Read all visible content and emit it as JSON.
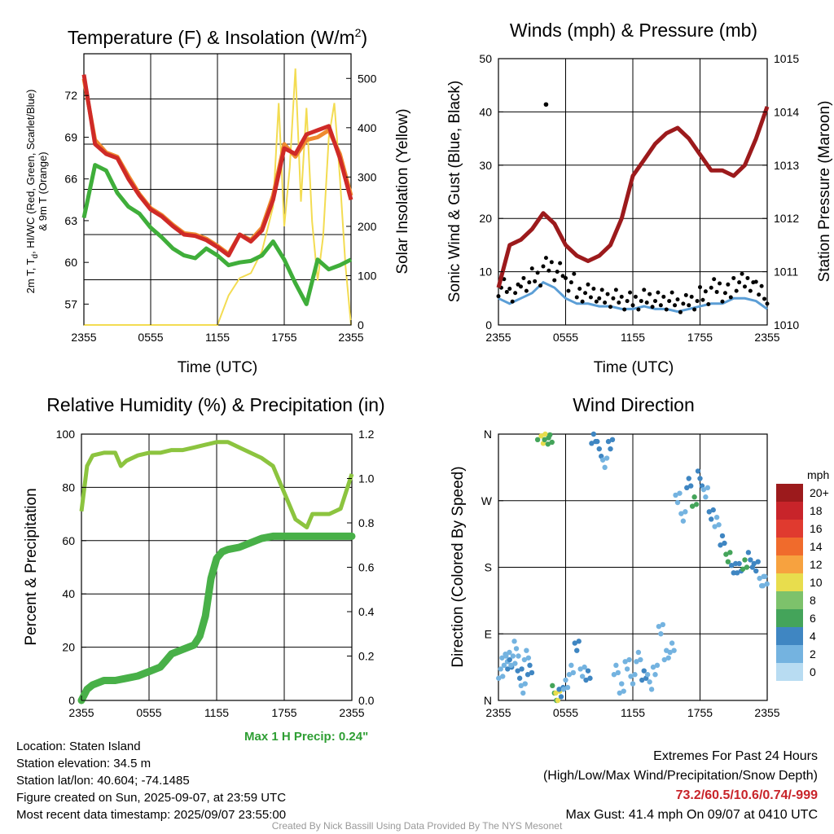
{
  "time_ticks": [
    "2355",
    "0555",
    "1155",
    "1755",
    "2355"
  ],
  "temp_chart": {
    "title": "Temperature (F) & Insolation (W/m",
    "title_sup": "2",
    "title_end": ")",
    "ylabel_line1": "2m T, T",
    "ylabel_sub": "d",
    "ylabel_line1_end": ", HI/WC (Red, Green, Scarlet/Blue)",
    "ylabel_line2": "& 9m T (Orange)",
    "y2label": "Solar Insolation (Yellow)",
    "xlabel": "Time (UTC)",
    "y_ticks": [
      "57",
      "60",
      "63",
      "66",
      "69",
      "72"
    ],
    "y2_ticks": [
      "0",
      "100",
      "200",
      "300",
      "400",
      "500"
    ]
  },
  "wind_chart": {
    "title": "Winds (mph) & Pressure (mb)",
    "ylabel": "Sonic Wind & Gust (Blue, Black)",
    "y2label": "Station Pressure (Maroon)",
    "xlabel": "Time (UTC)",
    "y_ticks": [
      "0",
      "10",
      "20",
      "30",
      "40",
      "50"
    ],
    "y2_ticks": [
      "1010",
      "1011",
      "1012",
      "1013",
      "1014",
      "1015"
    ]
  },
  "rh_chart": {
    "title": "Relative Humidity (%) & Precipitation (in)",
    "ylabel": "Percent & Precipitation",
    "y_ticks": [
      "0",
      "20",
      "40",
      "60",
      "80",
      "100"
    ],
    "y2_ticks": [
      "0.0",
      "0.2",
      "0.4",
      "0.6",
      "0.8",
      "1.0",
      "1.2"
    ],
    "max_precip": "Max 1 H Precip: 0.24\""
  },
  "dir_chart": {
    "title": "Wind Direction",
    "ylabel": "Direction (Colored By Speed)",
    "y_ticks": [
      "N",
      "E",
      "S",
      "W",
      "N"
    ],
    "legend_title": "mph",
    "legend_labels": [
      "20+",
      "18",
      "16",
      "14",
      "12",
      "10",
      "8",
      "6",
      "4",
      "2",
      "0"
    ],
    "legend_colors": [
      "#9c1a1c",
      "#c8242a",
      "#e03a2f",
      "#f06b2c",
      "#f7a23f",
      "#e8dd4d",
      "#7dc26b",
      "#44a45a",
      "#3f86c2",
      "#74b3e0",
      "#b8dcf2"
    ]
  },
  "info": {
    "location": "Location: Staten Island",
    "elevation": "Station elevation: 34.5 m",
    "latlon": "Station lat/lon: 40.604; -74.1485",
    "created": "Figure created on Sun, 2025-09-07, at 23:59 UTC",
    "recent": "Most recent data timestamp: 2025/09/07 23:55:00"
  },
  "extremes": {
    "line1": "Extremes For Past 24 Hours",
    "line2": "(High/Low/Max Wind/Precipitation/Snow Depth)",
    "values": "73.2/60.5/10.6/0.74/-999",
    "gust": "Max Gust: 41.4 mph On 09/07 at 0410 UTC"
  },
  "footer": "Created By Nick Bassill Using Data Provided By The NYS Mesonet",
  "chart_data": [
    {
      "type": "line",
      "title": "Temperature (F) & Insolation (W/m2)",
      "xlabel": "Time (UTC)",
      "ylabel": "2m T, Td, HI/WC (Red, Green, Scarlet/Blue) & 9m T (Orange)",
      "y2label": "Solar Insolation (Yellow)",
      "x_range_hours": [
        0,
        24
      ],
      "ylim": [
        55.5,
        75
      ],
      "y2lim": [
        0,
        550
      ],
      "series": [
        {
          "name": "2m T",
          "color": "#cf2a27",
          "axis": "left",
          "x": [
            0,
            1,
            2,
            3,
            4,
            5,
            6,
            7,
            8,
            9,
            10,
            11,
            12,
            13,
            14,
            15,
            16,
            17,
            18,
            19,
            20,
            21,
            22,
            23,
            24
          ],
          "y": [
            73.5,
            68.5,
            67.8,
            67.5,
            66.0,
            64.8,
            63.8,
            63.3,
            62.6,
            62.0,
            61.9,
            61.6,
            61.1,
            60.5,
            62.0,
            61.5,
            62.3,
            64.5,
            68.2,
            67.8,
            69.2,
            69.5,
            69.8,
            67.5,
            64.5
          ]
        },
        {
          "name": "9m T",
          "color": "#ef8a2e",
          "axis": "left",
          "x": [
            0,
            1,
            2,
            3,
            4,
            5,
            6,
            7,
            8,
            9,
            10,
            11,
            12,
            13,
            14,
            15,
            16,
            17,
            18,
            19,
            20,
            21,
            22,
            23,
            24
          ],
          "y": [
            73.2,
            68.8,
            67.9,
            67.6,
            66.2,
            64.9,
            63.9,
            63.4,
            62.7,
            62.1,
            62.0,
            61.7,
            61.2,
            60.6,
            62.0,
            61.6,
            62.5,
            64.8,
            68.5,
            67.6,
            68.8,
            69.0,
            69.5,
            67.8,
            64.8
          ]
        },
        {
          "name": "Td",
          "color": "#3fae3a",
          "axis": "left",
          "x": [
            0,
            1,
            2,
            3,
            4,
            5,
            6,
            7,
            8,
            9,
            10,
            11,
            12,
            13,
            14,
            15,
            16,
            17,
            18,
            19,
            20,
            21,
            22,
            23,
            24
          ],
          "y": [
            63.2,
            67.0,
            66.6,
            65.0,
            64.0,
            63.5,
            62.5,
            61.8,
            61.0,
            60.5,
            60.3,
            61.0,
            60.5,
            59.8,
            60.0,
            60.1,
            60.5,
            61.5,
            60.2,
            58.5,
            57.0,
            60.2,
            59.5,
            59.8,
            60.2
          ]
        },
        {
          "name": "Solar Insolation",
          "color": "#f3dc52",
          "axis": "right",
          "x": [
            0,
            10,
            11,
            12,
            13,
            14,
            15,
            16,
            17,
            17.5,
            18,
            18.5,
            19,
            19.5,
            20,
            20.5,
            21,
            21.5,
            22,
            22.5,
            23,
            23.5,
            24
          ],
          "y": [
            0,
            0,
            0,
            0,
            60,
            95,
            105,
            150,
            240,
            450,
            200,
            320,
            520,
            250,
            440,
            210,
            90,
            180,
            380,
            450,
            300,
            120,
            0
          ]
        }
      ]
    },
    {
      "type": "line",
      "title": "Winds (mph) & Pressure (mb)",
      "xlabel": "Time (UTC)",
      "ylabel": "Sonic Wind & Gust (Blue, Black)",
      "y2label": "Station Pressure (Maroon)",
      "x_range_hours": [
        0,
        24
      ],
      "ylim": [
        0,
        50
      ],
      "y2lim": [
        1010,
        1015
      ],
      "series": [
        {
          "name": "Sonic Wind",
          "color": "#5b9ed6",
          "axis": "left",
          "x": [
            0,
            1,
            2,
            3,
            4,
            5,
            6,
            7,
            8,
            9,
            10,
            11,
            12,
            13,
            14,
            15,
            16,
            17,
            18,
            19,
            20,
            21,
            22,
            23,
            24
          ],
          "y": [
            5,
            4,
            5,
            6,
            8,
            7,
            5,
            4,
            4,
            3.5,
            3.5,
            3,
            3,
            3.5,
            3,
            3,
            2.5,
            3,
            3.5,
            4,
            4,
            5,
            5,
            4.5,
            3
          ]
        },
        {
          "name": "Gust",
          "color": "#000000",
          "axis": "left",
          "x": [
            0,
            1,
            2,
            3,
            4,
            5,
            6,
            7,
            8,
            9,
            10,
            11,
            12,
            13,
            14,
            15,
            16,
            17,
            18,
            19,
            20,
            21,
            22,
            23,
            24
          ],
          "y": [
            7,
            6,
            8,
            9,
            11,
            10,
            8,
            6,
            6,
            5,
            5,
            4.5,
            4.5,
            5,
            4.5,
            4.5,
            4,
            4.5,
            5.5,
            7,
            6,
            8,
            8,
            6.5,
            4
          ]
        },
        {
          "name": "Station Pressure",
          "color": "#9c1a1c",
          "axis": "right",
          "x": [
            0,
            1,
            2,
            3,
            4,
            5,
            6,
            7,
            8,
            9,
            10,
            11,
            12,
            13,
            14,
            15,
            16,
            17,
            18,
            19,
            20,
            21,
            22,
            23,
            24
          ],
          "y": [
            1010.7,
            1011.5,
            1011.6,
            1011.8,
            1012.1,
            1011.9,
            1011.5,
            1011.3,
            1011.2,
            1011.3,
            1011.5,
            1012.0,
            1012.8,
            1013.1,
            1013.4,
            1013.6,
            1013.7,
            1013.5,
            1013.2,
            1012.9,
            1012.9,
            1012.8,
            1013.0,
            1013.5,
            1014.1
          ]
        }
      ],
      "max_gust_point": {
        "x": 4.25,
        "y": 41.4
      }
    },
    {
      "type": "line",
      "title": "Relative Humidity (%) & Precipitation (in)",
      "ylabel": "Percent & Precipitation",
      "x_range_hours": [
        0,
        24
      ],
      "ylim": [
        0,
        100
      ],
      "y2lim": [
        0,
        1.2
      ],
      "series": [
        {
          "name": "Relative Humidity",
          "color": "#8cc43f",
          "axis": "left",
          "x": [
            0,
            0.5,
            1,
            2,
            3,
            3.5,
            4,
            5,
            6,
            7,
            8,
            9,
            10,
            11,
            12,
            13,
            14,
            15,
            16,
            17,
            18,
            19,
            20,
            20.5,
            21,
            22,
            23,
            24
          ],
          "y": [
            71,
            88,
            92,
            93,
            93,
            88,
            90,
            92,
            93,
            93,
            94,
            94,
            95,
            96,
            97,
            97,
            95,
            93,
            91,
            88,
            78,
            68,
            65,
            70,
            70,
            70,
            72,
            85
          ]
        },
        {
          "name": "Precipitation",
          "color": "#48b048",
          "axis": "right",
          "x": [
            0,
            0.5,
            1,
            1.5,
            2,
            3,
            4,
            5,
            6,
            7,
            7.5,
            8,
            9,
            10,
            10.5,
            11,
            11.5,
            12,
            12.5,
            13,
            14,
            15,
            16,
            17,
            18,
            19,
            20,
            24
          ],
          "y": [
            0,
            0.05,
            0.07,
            0.08,
            0.09,
            0.09,
            0.1,
            0.11,
            0.13,
            0.15,
            0.18,
            0.21,
            0.23,
            0.25,
            0.29,
            0.38,
            0.55,
            0.64,
            0.67,
            0.68,
            0.69,
            0.71,
            0.73,
            0.74,
            0.74,
            0.74,
            0.74,
            0.74
          ]
        }
      ]
    },
    {
      "type": "scatter",
      "title": "Wind Direction",
      "ylabel": "Direction (Colored By Speed)",
      "x_range_hours": [
        0,
        24
      ],
      "ylim_degrees": [
        0,
        360
      ],
      "points": [
        {
          "x": 0.2,
          "y": 40,
          "s": 2
        },
        {
          "x": 0.5,
          "y": 50,
          "s": 2
        },
        {
          "x": 0.8,
          "y": 60,
          "s": 3
        },
        {
          "x": 1.0,
          "y": 45,
          "s": 4
        },
        {
          "x": 1.3,
          "y": 55,
          "s": 2
        },
        {
          "x": 1.6,
          "y": 70,
          "s": 3
        },
        {
          "x": 1.9,
          "y": 35,
          "s": 4
        },
        {
          "x": 2.2,
          "y": 20,
          "s": 2
        },
        {
          "x": 2.5,
          "y": 60,
          "s": 3
        },
        {
          "x": 2.8,
          "y": 45,
          "s": 4
        },
        {
          "x": 3.5,
          "y": 355,
          "s": 7
        },
        {
          "x": 4.0,
          "y": 355,
          "s": 10
        },
        {
          "x": 4.3,
          "y": 355,
          "s": 6
        },
        {
          "x": 4.6,
          "y": 354,
          "s": 7
        },
        {
          "x": 5.0,
          "y": 10,
          "s": 7
        },
        {
          "x": 5.3,
          "y": 5,
          "s": 10
        },
        {
          "x": 5.6,
          "y": 15,
          "s": 4
        },
        {
          "x": 6.0,
          "y": 20,
          "s": 3
        },
        {
          "x": 6.5,
          "y": 45,
          "s": 3
        },
        {
          "x": 7.0,
          "y": 70,
          "s": 4
        },
        {
          "x": 7.5,
          "y": 40,
          "s": 2
        },
        {
          "x": 8.0,
          "y": 30,
          "s": 4
        },
        {
          "x": 8.5,
          "y": 355,
          "s": 4
        },
        {
          "x": 9.0,
          "y": 340,
          "s": 4
        },
        {
          "x": 9.5,
          "y": 320,
          "s": 3
        },
        {
          "x": 10.0,
          "y": 350,
          "s": 4
        },
        {
          "x": 10.5,
          "y": 40,
          "s": 3
        },
        {
          "x": 11.0,
          "y": 20,
          "s": 2
        },
        {
          "x": 11.5,
          "y": 45,
          "s": 3
        },
        {
          "x": 12.0,
          "y": 30,
          "s": 2
        },
        {
          "x": 12.5,
          "y": 55,
          "s": 3
        },
        {
          "x": 13.0,
          "y": 35,
          "s": 4
        },
        {
          "x": 13.5,
          "y": 25,
          "s": 2
        },
        {
          "x": 14.0,
          "y": 40,
          "s": 3
        },
        {
          "x": 14.5,
          "y": 100,
          "s": 2
        },
        {
          "x": 15.0,
          "y": 60,
          "s": 3
        },
        {
          "x": 15.5,
          "y": 75,
          "s": 2
        },
        {
          "x": 16.0,
          "y": 270,
          "s": 3
        },
        {
          "x": 16.5,
          "y": 250,
          "s": 2
        },
        {
          "x": 17.0,
          "y": 290,
          "s": 4
        },
        {
          "x": 17.5,
          "y": 270,
          "s": 6
        },
        {
          "x": 18.0,
          "y": 300,
          "s": 4
        },
        {
          "x": 18.5,
          "y": 280,
          "s": 3
        },
        {
          "x": 19.0,
          "y": 255,
          "s": 4
        },
        {
          "x": 19.5,
          "y": 240,
          "s": 3
        },
        {
          "x": 20.0,
          "y": 220,
          "s": 4
        },
        {
          "x": 20.5,
          "y": 190,
          "s": 6
        },
        {
          "x": 21.0,
          "y": 180,
          "s": 4
        },
        {
          "x": 21.5,
          "y": 175,
          "s": 4
        },
        {
          "x": 22.0,
          "y": 185,
          "s": 6
        },
        {
          "x": 22.5,
          "y": 190,
          "s": 4
        },
        {
          "x": 23.0,
          "y": 180,
          "s": 4
        },
        {
          "x": 23.5,
          "y": 165,
          "s": 3
        },
        {
          "x": 23.8,
          "y": 160,
          "s": 3
        }
      ]
    }
  ]
}
